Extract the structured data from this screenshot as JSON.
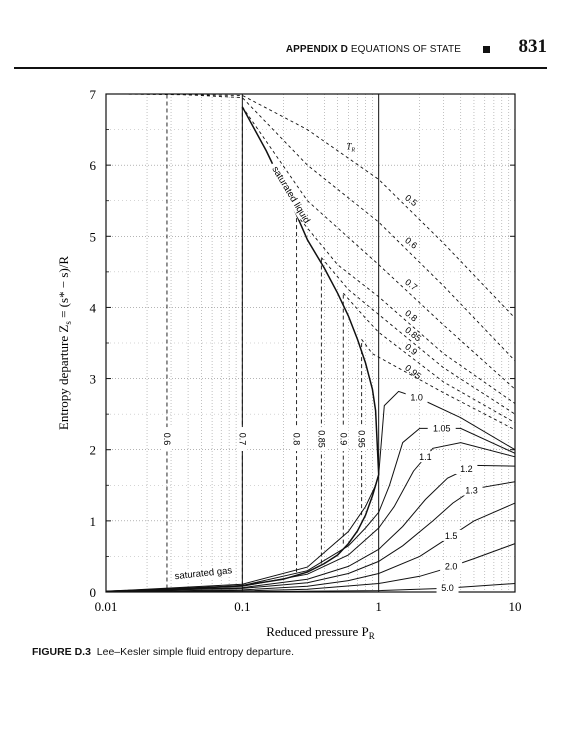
{
  "header": {
    "appendix": "APPENDIX D",
    "section": "EQUATIONS OF STATE",
    "page_number": "831"
  },
  "caption": {
    "label": "FIGURE D.3",
    "text": "Lee–Kesler simple fluid entropy departure."
  },
  "chart_data": {
    "type": "line",
    "xlabel": "Reduced pressure  P",
    "xlabel_sub": "R",
    "ylabel": "Entropy departure  Z",
    "ylabel_sub": "s",
    "ylabel_rest": " = (s* − s)/R",
    "x_scale": "log",
    "xlim": [
      0.01,
      10
    ],
    "ylim": [
      0,
      7
    ],
    "x_ticks": [
      0.01,
      0.1,
      1,
      10
    ],
    "x_tick_labels": [
      "0.01",
      "0.1",
      "1",
      "10"
    ],
    "y_ticks": [
      0,
      1,
      2,
      3,
      4,
      5,
      6,
      7
    ],
    "y_tick_labels": [
      "0",
      "1",
      "2",
      "3",
      "4",
      "5",
      "6",
      "7"
    ],
    "grid": true,
    "tr_marker": "T",
    "tr_marker_sub": "R",
    "saturated_liquid_label": "saturated liquid",
    "saturated_gas_label": "saturated gas",
    "saturated_liquid": [
      [
        0.1,
        6.82
      ],
      [
        0.15,
        6.2
      ],
      [
        0.2,
        5.7
      ],
      [
        0.25,
        5.3
      ],
      [
        0.3,
        4.95
      ],
      [
        0.4,
        4.55
      ],
      [
        0.5,
        4.2
      ],
      [
        0.6,
        3.88
      ],
      [
        0.7,
        3.55
      ],
      [
        0.8,
        3.22
      ],
      [
        0.9,
        2.85
      ],
      [
        0.95,
        2.55
      ],
      [
        1.0,
        1.65
      ]
    ],
    "saturated_gas": [
      [
        0.01,
        0.01
      ],
      [
        0.03,
        0.03
      ],
      [
        0.1,
        0.09
      ],
      [
        0.2,
        0.18
      ],
      [
        0.3,
        0.28
      ],
      [
        0.4,
        0.4
      ],
      [
        0.5,
        0.52
      ],
      [
        0.6,
        0.68
      ],
      [
        0.7,
        0.86
      ],
      [
        0.8,
        1.08
      ],
      [
        0.9,
        1.35
      ],
      [
        0.95,
        1.5
      ],
      [
        1.0,
        1.65
      ]
    ],
    "subcritical_vapor_isotherms": [
      {
        "label": "0.6",
        "psat": 0.028,
        "label_y": 2.15
      },
      {
        "label": "0.7",
        "psat": 0.1,
        "label_y": 2.15
      },
      {
        "label": "0.8",
        "psat": 0.25,
        "label_y": 2.15
      },
      {
        "label": "0.85",
        "psat": 0.38,
        "label_y": 2.15
      },
      {
        "label": "0.9",
        "psat": 0.55,
        "label_y": 2.15
      },
      {
        "label": "0.95",
        "psat": 0.75,
        "label_y": 2.15
      }
    ],
    "liquid_isotherms": [
      {
        "label": "0.5",
        "points": [
          [
            0.012,
            7.0
          ],
          [
            0.1,
            6.98
          ],
          [
            0.3,
            6.5
          ],
          [
            1.0,
            5.8
          ],
          [
            3,
            4.9
          ],
          [
            10,
            3.85
          ]
        ]
      },
      {
        "label": "0.6",
        "points": [
          [
            0.03,
            7.0
          ],
          [
            0.1,
            6.95
          ],
          [
            0.3,
            6.0
          ],
          [
            1.0,
            5.2
          ],
          [
            3,
            4.3
          ],
          [
            10,
            3.25
          ]
        ]
      },
      {
        "label": "0.7",
        "points": [
          [
            0.1,
            6.82
          ],
          [
            0.3,
            5.5
          ],
          [
            1.0,
            4.6
          ],
          [
            3,
            3.75
          ],
          [
            10,
            2.85
          ]
        ]
      },
      {
        "label": "0.8",
        "points": [
          [
            0.25,
            5.3
          ],
          [
            0.5,
            4.6
          ],
          [
            1.0,
            4.15
          ],
          [
            3,
            3.35
          ],
          [
            10,
            2.65
          ]
        ]
      },
      {
        "label": "0.85",
        "points": [
          [
            0.38,
            4.7
          ],
          [
            0.6,
            4.25
          ],
          [
            1.0,
            3.9
          ],
          [
            3,
            3.15
          ],
          [
            10,
            2.5
          ]
        ]
      },
      {
        "label": "0.9",
        "points": [
          [
            0.55,
            4.2
          ],
          [
            0.8,
            3.85
          ],
          [
            1.0,
            3.65
          ],
          [
            3,
            2.95
          ],
          [
            10,
            2.38
          ]
        ]
      },
      {
        "label": "0.95",
        "points": [
          [
            0.75,
            3.55
          ],
          [
            0.9,
            3.35
          ],
          [
            1.0,
            3.3
          ],
          [
            3,
            2.8
          ],
          [
            10,
            2.28
          ]
        ]
      }
    ],
    "supercritical_isotherms": [
      {
        "label": "1.0",
        "points": [
          [
            0.01,
            0.01
          ],
          [
            0.1,
            0.11
          ],
          [
            0.3,
            0.35
          ],
          [
            0.6,
            0.85
          ],
          [
            0.8,
            1.2
          ],
          [
            0.95,
            1.5
          ],
          [
            1.0,
            1.65
          ],
          [
            1.1,
            2.62
          ],
          [
            1.4,
            2.82
          ],
          [
            2,
            2.72
          ],
          [
            4,
            2.45
          ],
          [
            10,
            2.0
          ]
        ]
      },
      {
        "label": "1.05",
        "points": [
          [
            0.01,
            0.01
          ],
          [
            0.1,
            0.09
          ],
          [
            0.3,
            0.3
          ],
          [
            0.6,
            0.65
          ],
          [
            0.8,
            0.9
          ],
          [
            1.0,
            1.12
          ],
          [
            1.2,
            1.5
          ],
          [
            1.5,
            2.1
          ],
          [
            2,
            2.3
          ],
          [
            4,
            2.3
          ],
          [
            10,
            1.95
          ]
        ]
      },
      {
        "label": "1.1",
        "points": [
          [
            0.01,
            0.01
          ],
          [
            0.1,
            0.08
          ],
          [
            0.3,
            0.25
          ],
          [
            0.6,
            0.52
          ],
          [
            1.0,
            0.9
          ],
          [
            1.3,
            1.2
          ],
          [
            1.8,
            1.7
          ],
          [
            2.5,
            2.02
          ],
          [
            4,
            2.1
          ],
          [
            10,
            1.9
          ]
        ]
      },
      {
        "label": "1.2",
        "points": [
          [
            0.01,
            0.01
          ],
          [
            0.1,
            0.06
          ],
          [
            0.3,
            0.18
          ],
          [
            0.6,
            0.36
          ],
          [
            1.0,
            0.6
          ],
          [
            1.5,
            0.92
          ],
          [
            2.2,
            1.3
          ],
          [
            3.2,
            1.6
          ],
          [
            5,
            1.78
          ],
          [
            10,
            1.77
          ]
        ]
      },
      {
        "label": "1.3",
        "points": [
          [
            0.01,
            0.01
          ],
          [
            0.1,
            0.05
          ],
          [
            0.3,
            0.13
          ],
          [
            0.6,
            0.26
          ],
          [
            1.0,
            0.43
          ],
          [
            1.5,
            0.65
          ],
          [
            2.5,
            1.0
          ],
          [
            3.5,
            1.25
          ],
          [
            5,
            1.45
          ],
          [
            10,
            1.55
          ]
        ]
      },
      {
        "label": "1.5",
        "points": [
          [
            0.01,
            0.005
          ],
          [
            0.1,
            0.03
          ],
          [
            0.3,
            0.08
          ],
          [
            0.6,
            0.16
          ],
          [
            1.0,
            0.26
          ],
          [
            2,
            0.5
          ],
          [
            3,
            0.72
          ],
          [
            5,
            1.0
          ],
          [
            10,
            1.25
          ]
        ]
      },
      {
        "label": "2.0",
        "points": [
          [
            0.01,
            0.003
          ],
          [
            0.1,
            0.015
          ],
          [
            0.3,
            0.04
          ],
          [
            1.0,
            0.12
          ],
          [
            2,
            0.22
          ],
          [
            3,
            0.32
          ],
          [
            5,
            0.47
          ],
          [
            10,
            0.68
          ]
        ]
      },
      {
        "label": "5.0",
        "points": [
          [
            0.01,
            0.001
          ],
          [
            0.1,
            0.004
          ],
          [
            1.0,
            0.02
          ],
          [
            3,
            0.05
          ],
          [
            10,
            0.12
          ]
        ]
      }
    ]
  }
}
